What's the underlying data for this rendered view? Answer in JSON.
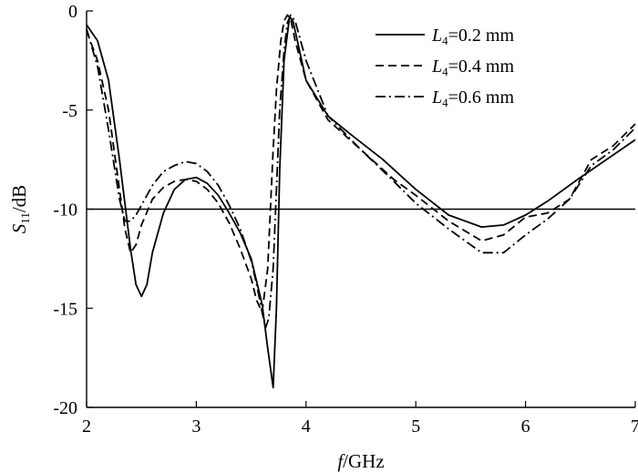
{
  "chart_data": {
    "type": "line",
    "xlabel": "f/GHz",
    "ylabel": "S11/dB",
    "xlim": [
      2,
      7
    ],
    "ylim": [
      -20,
      0
    ],
    "x_ticks": [
      "2",
      "3",
      "4",
      "5",
      "6",
      "7"
    ],
    "y_ticks": [
      "0",
      "-5",
      "-10",
      "-15",
      "-20"
    ],
    "grid": false,
    "legend_position": "top-right",
    "reference_line": {
      "y": -10
    },
    "series": [
      {
        "name": "L4=0.2 mm",
        "name_parts": {
          "symbol": "L",
          "subscript": "4",
          "rest": "=0.2 mm"
        },
        "dash": "solid",
        "x": [
          2.0,
          2.1,
          2.2,
          2.3,
          2.4,
          2.45,
          2.5,
          2.55,
          2.6,
          2.7,
          2.8,
          2.9,
          3.0,
          3.1,
          3.2,
          3.3,
          3.4,
          3.5,
          3.6,
          3.65,
          3.7,
          3.73,
          3.76,
          3.8,
          3.85,
          3.88,
          3.92,
          4.0,
          4.2,
          4.4,
          4.7,
          5.0,
          5.3,
          5.6,
          5.8,
          6.0,
          6.2,
          6.5,
          7.0
        ],
        "y": [
          -0.7,
          -1.5,
          -3.5,
          -7.5,
          -12.0,
          -13.8,
          -14.4,
          -13.8,
          -12.2,
          -10.2,
          -9.0,
          -8.5,
          -8.4,
          -8.7,
          -9.3,
          -10.2,
          -11.2,
          -12.5,
          -14.8,
          -17.0,
          -19.0,
          -15.0,
          -8.0,
          -2.5,
          -0.3,
          -0.5,
          -1.5,
          -3.5,
          -5.3,
          -6.2,
          -7.5,
          -9.0,
          -10.3,
          -10.9,
          -10.8,
          -10.3,
          -9.6,
          -8.4,
          -6.5
        ]
      },
      {
        "name": "L4=0.4 mm",
        "name_parts": {
          "symbol": "L",
          "subscript": "4",
          "rest": "=0.4 mm"
        },
        "dash": "dashed",
        "x": [
          2.0,
          2.1,
          2.2,
          2.3,
          2.35,
          2.4,
          2.45,
          2.5,
          2.6,
          2.7,
          2.8,
          2.9,
          3.0,
          3.1,
          3.2,
          3.3,
          3.4,
          3.5,
          3.55,
          3.6,
          3.65,
          3.7,
          3.73,
          3.77,
          3.8,
          3.83,
          3.86,
          3.9,
          4.0,
          4.2,
          4.5,
          4.8,
          5.0,
          5.3,
          5.6,
          5.8,
          6.0,
          6.2,
          6.4,
          6.6,
          6.8,
          7.0
        ],
        "y": [
          -1.0,
          -2.5,
          -5.0,
          -9.0,
          -11.0,
          -12.2,
          -11.8,
          -10.8,
          -9.5,
          -8.9,
          -8.6,
          -8.5,
          -8.6,
          -9.0,
          -9.7,
          -10.7,
          -12.0,
          -13.5,
          -14.6,
          -15.2,
          -13.0,
          -7.0,
          -4.0,
          -1.5,
          -0.5,
          -0.2,
          -0.4,
          -1.5,
          -3.5,
          -5.5,
          -7.0,
          -8.5,
          -9.3,
          -10.6,
          -11.6,
          -11.3,
          -10.4,
          -10.2,
          -9.5,
          -7.5,
          -6.8,
          -5.7
        ]
      },
      {
        "name": "L4=0.6 mm",
        "name_parts": {
          "symbol": "L",
          "subscript": "4",
          "rest": "=0.6 mm"
        },
        "dash": "dashdot",
        "x": [
          2.0,
          2.1,
          2.2,
          2.3,
          2.35,
          2.4,
          2.45,
          2.5,
          2.6,
          2.7,
          2.8,
          2.9,
          3.0,
          3.1,
          3.2,
          3.3,
          3.4,
          3.5,
          3.55,
          3.6,
          3.63,
          3.66,
          3.7,
          3.73,
          3.76,
          3.8,
          3.83,
          3.86,
          3.9,
          4.0,
          4.2,
          4.5,
          4.8,
          5.0,
          5.3,
          5.6,
          5.8,
          6.0,
          6.2,
          6.4,
          6.6,
          6.8,
          7.0
        ],
        "y": [
          -0.9,
          -2.8,
          -6.0,
          -9.5,
          -10.6,
          -10.6,
          -10.3,
          -9.8,
          -8.8,
          -8.1,
          -7.8,
          -7.6,
          -7.7,
          -8.1,
          -8.8,
          -9.8,
          -11.0,
          -12.6,
          -13.8,
          -15.2,
          -16.0,
          -15.5,
          -13.0,
          -9.0,
          -5.0,
          -2.0,
          -0.6,
          -0.2,
          -0.5,
          -2.5,
          -5.3,
          -7.0,
          -8.6,
          -9.7,
          -11.0,
          -12.2,
          -12.2,
          -11.3,
          -10.5,
          -9.5,
          -7.8,
          -7.0,
          -5.9
        ]
      }
    ]
  }
}
